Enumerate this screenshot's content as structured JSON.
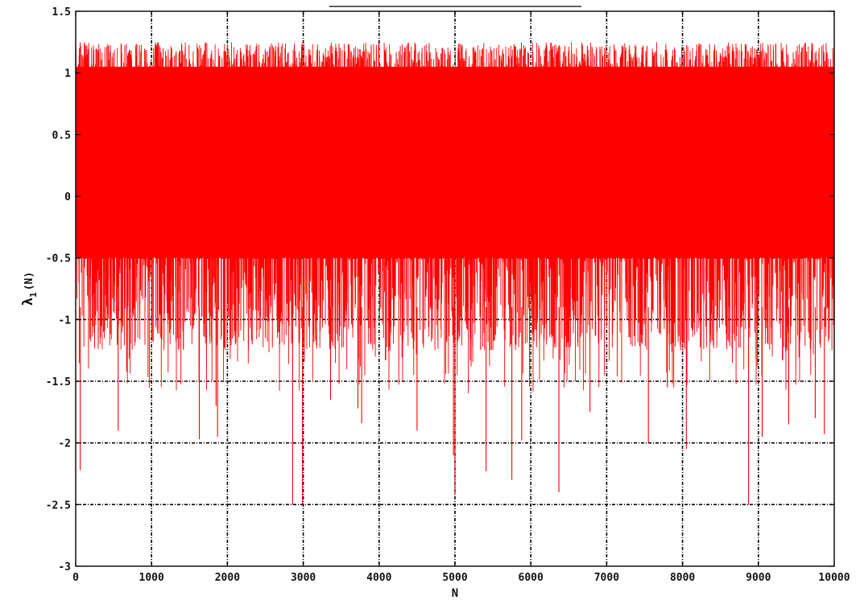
{
  "chart_data": {
    "type": "line",
    "title": "",
    "xlabel": "N",
    "ylabel": "λ₁(N)",
    "ylabel_main": "λ",
    "ylabel_sub": "1",
    "ylabel_tail": "(N)",
    "xlim": [
      0,
      10000
    ],
    "ylim": [
      -3,
      1.5
    ],
    "grid": true,
    "x_ticks": [
      0,
      1000,
      2000,
      3000,
      4000,
      5000,
      6000,
      7000,
      8000,
      9000,
      10000
    ],
    "x_tick_labels": [
      "0",
      "1000",
      "2000",
      "3000",
      "4000",
      "5000",
      "6000",
      "7000",
      "8000",
      "9000",
      "10000"
    ],
    "y_ticks": [
      -3,
      -2.5,
      -2,
      -1.5,
      -1,
      -0.5,
      0,
      0.5,
      1,
      1.5
    ],
    "y_tick_labels": [
      "-3",
      "-2.5",
      "-2",
      "-1.5",
      "-1",
      "-0.5",
      "0",
      "0.5",
      "1",
      "1.5"
    ],
    "series": [
      {
        "color": "#ff0000",
        "n_points": 10000,
        "band_upper_typical": 1.2,
        "band_lower_typical": -1.2,
        "dense_core_upper": 1.05,
        "dense_core_lower": -0.5,
        "deep_spikes": [
          {
            "x": 60,
            "y": -2.22
          },
          {
            "x": 560,
            "y": -1.9
          },
          {
            "x": 1630,
            "y": -1.97
          },
          {
            "x": 1850,
            "y": -1.7
          },
          {
            "x": 1870,
            "y": -1.95
          },
          {
            "x": 2860,
            "y": -2.5
          },
          {
            "x": 2990,
            "y": -2.5
          },
          {
            "x": 3360,
            "y": -1.65
          },
          {
            "x": 3720,
            "y": -1.72
          },
          {
            "x": 3770,
            "y": -1.84
          },
          {
            "x": 4500,
            "y": -1.9
          },
          {
            "x": 4980,
            "y": -2.1
          },
          {
            "x": 5000,
            "y": -2.42
          },
          {
            "x": 5410,
            "y": -2.23
          },
          {
            "x": 5750,
            "y": -2.3
          },
          {
            "x": 5880,
            "y": -1.98
          },
          {
            "x": 6370,
            "y": -2.4
          },
          {
            "x": 6780,
            "y": -1.75
          },
          {
            "x": 7550,
            "y": -2.0
          },
          {
            "x": 7800,
            "y": -1.55
          },
          {
            "x": 8050,
            "y": -2.05
          },
          {
            "x": 8870,
            "y": -2.5
          },
          {
            "x": 9050,
            "y": -1.95
          },
          {
            "x": 9400,
            "y": -1.85
          },
          {
            "x": 9750,
            "y": -1.8
          },
          {
            "x": 9870,
            "y": -1.93
          }
        ]
      }
    ]
  }
}
